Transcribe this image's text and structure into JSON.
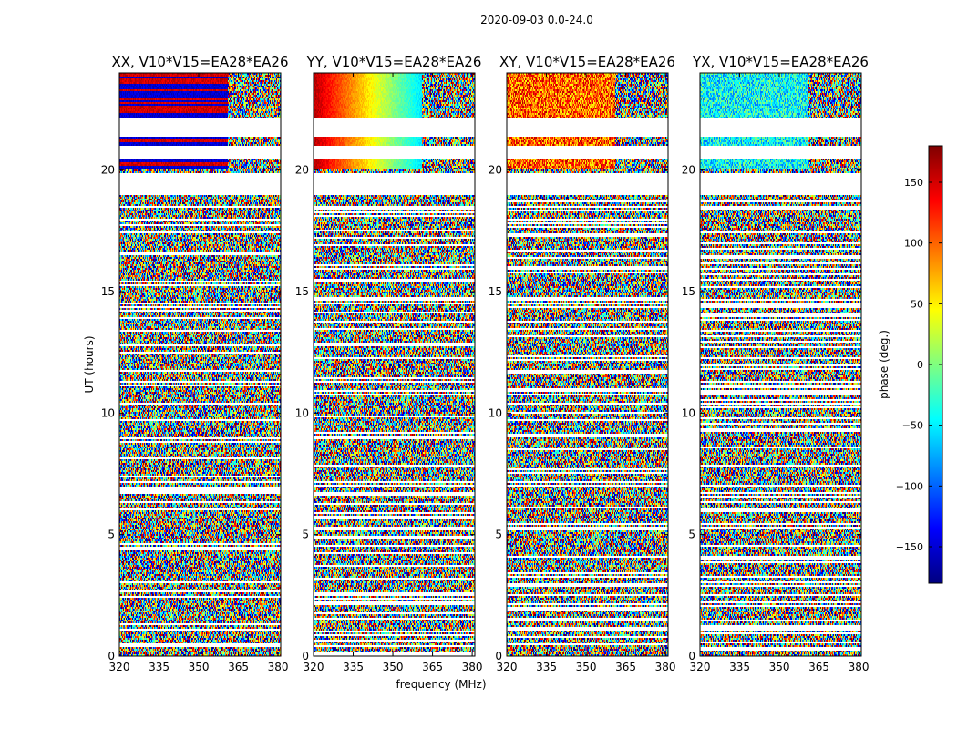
{
  "figure": {
    "suptitle": "2020-09-03 0.0-24.0",
    "xlabel": "frequency (MHz)",
    "ylabel": "UT (hours)",
    "colorbar_label": "phase (deg.)"
  },
  "chart_data": {
    "type": "heatmap",
    "colormap": "jet",
    "panels": [
      {
        "title": "XX, V10*V15=EA28*EA26",
        "pol": "XX"
      },
      {
        "title": "YY, V10*V15=EA28*EA26",
        "pol": "YY"
      },
      {
        "title": "XY, V10*V15=EA28*EA26",
        "pol": "XY"
      },
      {
        "title": "YX, V10*V15=EA28*EA26",
        "pol": "YX"
      }
    ],
    "xlim": [
      320,
      381
    ],
    "xticks": [
      320,
      335,
      350,
      365,
      380
    ],
    "ylim": [
      0,
      24
    ],
    "yticks": [
      0,
      5,
      10,
      15,
      20
    ],
    "colorbar": {
      "range": [
        -180,
        180
      ],
      "ticks": [
        150,
        100,
        50,
        0,
        -50,
        -100,
        -150
      ],
      "tick_labels": [
        "150",
        "100",
        "50",
        "0",
        "−50",
        "−100",
        "−150"
      ]
    },
    "flagged_ut_ranges": [
      [
        19.0,
        19.9
      ],
      [
        20.5,
        21.0
      ],
      [
        21.4,
        22.1
      ]
    ],
    "coherent_ut_range": [
      20.0,
      24.0
    ],
    "rfi_freq_edge_mhz": 361
  }
}
